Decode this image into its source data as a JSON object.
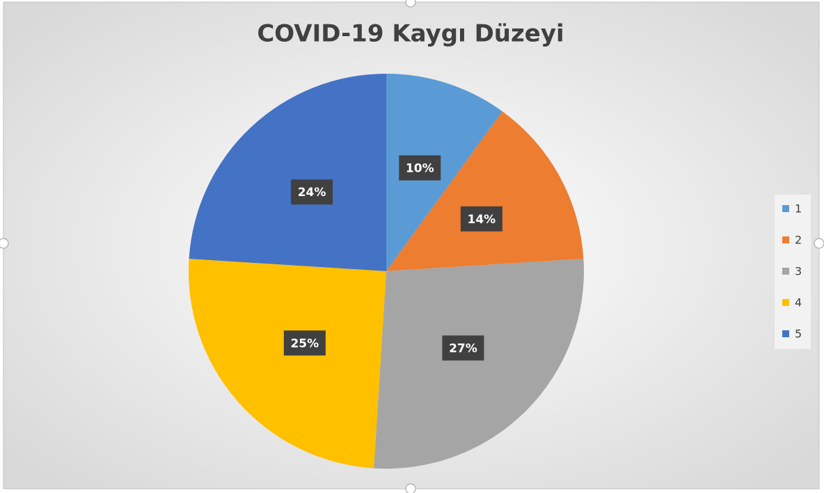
{
  "chart_data": {
    "type": "pie",
    "title": "COVID-19 Kaygı Düzeyi",
    "categories": [
      "1",
      "2",
      "3",
      "4",
      "5"
    ],
    "values": [
      10,
      14,
      27,
      25,
      24
    ],
    "value_labels": [
      "10%",
      "14%",
      "27%",
      "25%",
      "24%"
    ],
    "colors": [
      "#5b9bd5",
      "#ed7d31",
      "#a5a5a5",
      "#ffc000",
      "#4472c4"
    ],
    "legend": "right"
  }
}
